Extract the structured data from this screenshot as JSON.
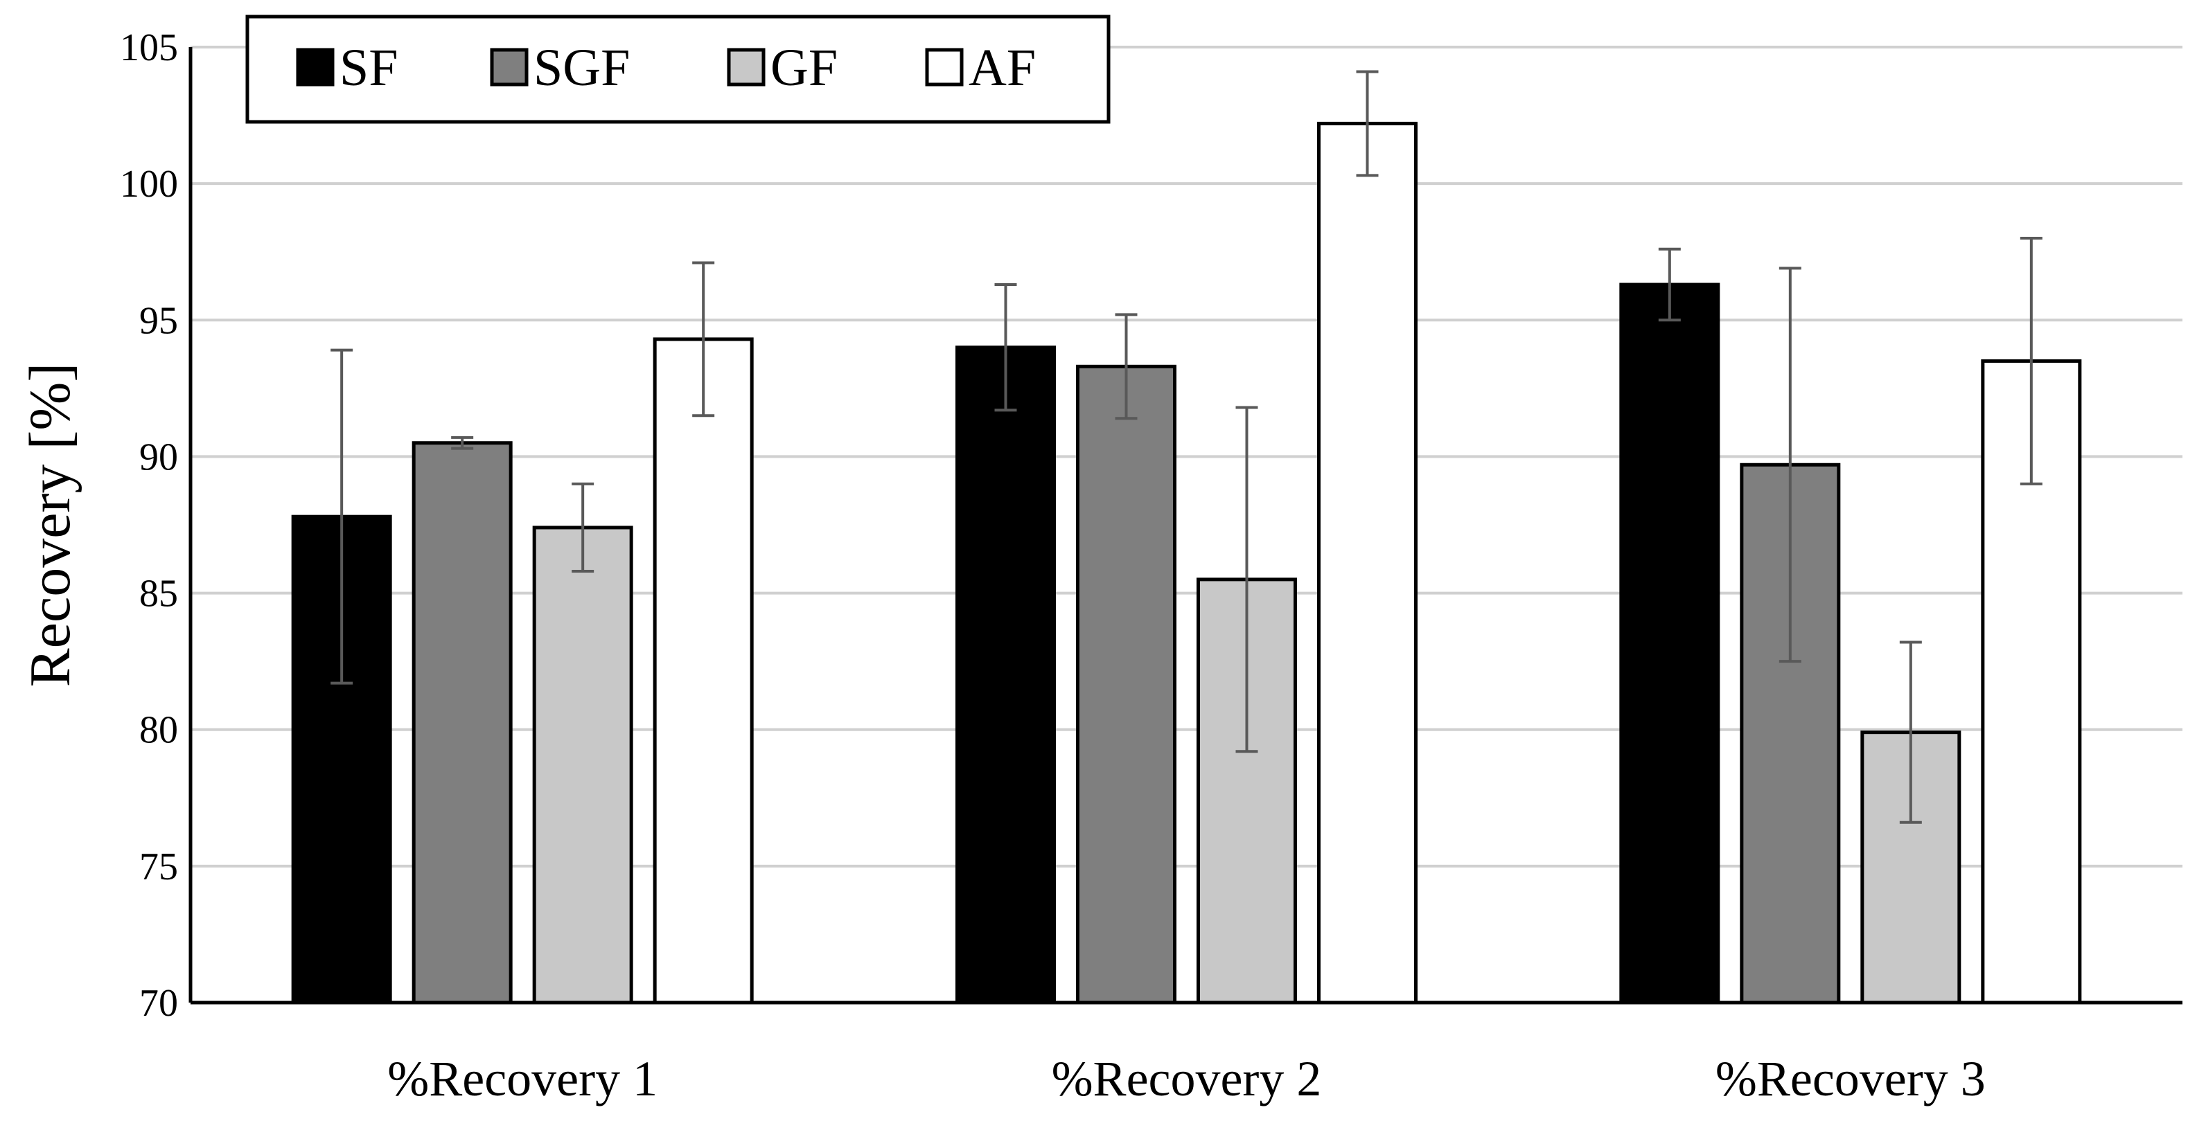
{
  "chart_data": {
    "type": "bar",
    "title": "",
    "xlabel": "",
    "ylabel": "Recovery [%]",
    "ylim": [
      70,
      105
    ],
    "yticks": [
      70,
      75,
      80,
      85,
      90,
      95,
      100,
      105
    ],
    "grid": "horizontal",
    "legend_position": "top-left",
    "categories": [
      "%Recovery 1",
      "%Recovery 2",
      "%Recovery 3"
    ],
    "series": [
      {
        "name": "SF",
        "color": "#000000",
        "values": [
          87.8,
          94.0,
          96.3
        ],
        "errors": [
          6.1,
          2.3,
          1.3
        ]
      },
      {
        "name": "SGF",
        "color": "#7f7f7f",
        "values": [
          90.5,
          93.3,
          89.7
        ],
        "errors": [
          0.2,
          1.9,
          7.2
        ]
      },
      {
        "name": "GF",
        "color": "#c8c8c8",
        "values": [
          87.4,
          85.5,
          79.9
        ],
        "errors": [
          1.6,
          6.3,
          3.3
        ]
      },
      {
        "name": "AF",
        "color": "#ffffff",
        "values": [
          94.3,
          102.2,
          93.5
        ],
        "errors": [
          2.8,
          1.9,
          4.5
        ]
      }
    ]
  }
}
